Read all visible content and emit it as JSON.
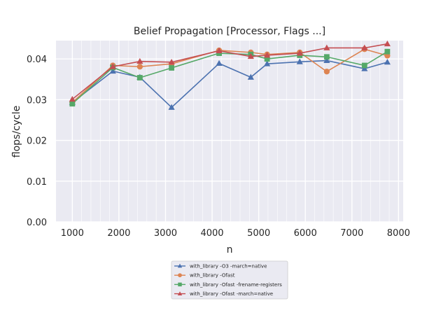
{
  "chart_data": {
    "type": "line",
    "title": "Belief Propagation [Processor, Flags ...]",
    "xlabel": "n",
    "ylabel": "flops/cycle",
    "xlim": [
      650,
      8100
    ],
    "ylim": [
      0,
      0.0445
    ],
    "xticks": [
      1000,
      2000,
      3000,
      4000,
      5000,
      6000,
      7000,
      8000
    ],
    "xtick_labels": [
      "1000",
      "2000",
      "3000",
      "4000",
      "5000",
      "6000",
      "7000",
      "8000"
    ],
    "yticks": [
      0,
      0.01,
      0.02,
      0.03,
      0.04
    ],
    "ytick_labels": [
      "0.00",
      "0.01",
      "0.02",
      "0.03",
      "0.04"
    ],
    "grid": true,
    "legend_position": "below",
    "x": [
      1000,
      1870,
      2450,
      3130,
      4150,
      4830,
      5180,
      5880,
      6460,
      7270,
      7760
    ],
    "series": [
      {
        "name": "with_library -O3 -march=native",
        "color": "#4c72b0",
        "marker": "triangle",
        "values": [
          0.0293,
          0.037,
          0.0355,
          0.0281,
          0.0389,
          0.0355,
          0.0388,
          0.0393,
          0.0396,
          0.0376,
          0.0392
        ]
      },
      {
        "name": "with_library -Ofast",
        "color": "#dd8452",
        "marker": "circle",
        "values": [
          0.0293,
          0.0384,
          0.0381,
          0.0388,
          0.0421,
          0.0416,
          0.0411,
          0.0416,
          0.0369,
          0.0424,
          0.0408
        ]
      },
      {
        "name": "with_library -Ofast -frename-registers",
        "color": "#55a868",
        "marker": "square",
        "values": [
          0.029,
          0.0379,
          0.0354,
          0.0378,
          0.0414,
          0.0411,
          0.04,
          0.0409,
          0.0405,
          0.0384,
          0.0418
        ]
      },
      {
        "name": "with_library -Ofast -march=native",
        "color": "#c44e52",
        "marker": "triangle",
        "values": [
          0.0301,
          0.0381,
          0.0394,
          0.0392,
          0.042,
          0.0406,
          0.0409,
          0.0414,
          0.0427,
          0.0427,
          0.0437
        ]
      }
    ]
  }
}
